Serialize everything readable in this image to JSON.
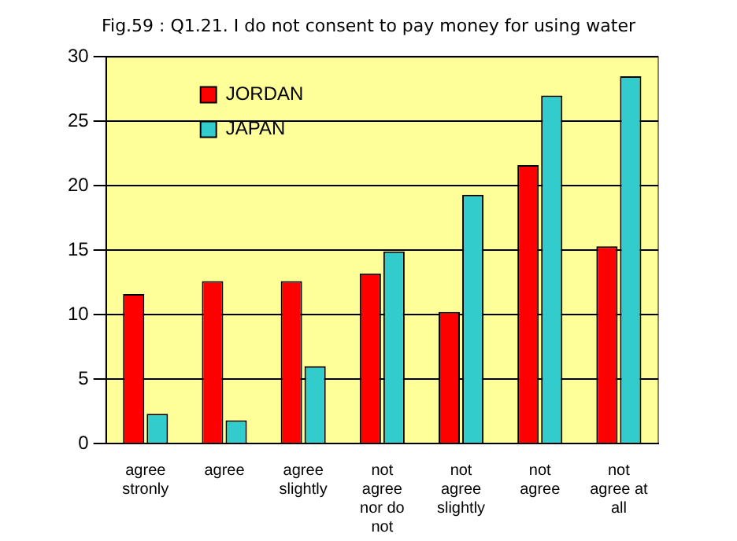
{
  "chart_data": {
    "type": "bar",
    "title": "Fig.59 : Q1.21.  I do not consent to pay money for using water",
    "categories": [
      "agree stronly",
      "agree",
      "agree slightly",
      "not agree nor do not",
      "not agree slightly",
      "not agree",
      "not agree at all"
    ],
    "series": [
      {
        "name": "JORDAN",
        "color": "#ff0000",
        "values": [
          11.6,
          12.6,
          12.6,
          13.2,
          10.2,
          21.6,
          15.3
        ]
      },
      {
        "name": "JAPAN",
        "color": "#33cccc",
        "values": [
          2.3,
          1.8,
          6.0,
          14.9,
          19.3,
          27.0,
          28.5
        ]
      }
    ],
    "ylim": [
      0,
      30
    ],
    "yticks": [
      0,
      5,
      10,
      15,
      20,
      25,
      30
    ],
    "grid": "y",
    "legend": "top left"
  }
}
